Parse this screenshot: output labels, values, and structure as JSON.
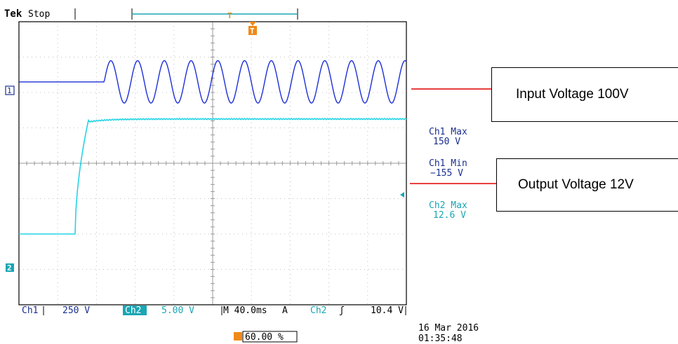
{
  "header": {
    "brand": "Tek",
    "state": "Stop"
  },
  "trigger": {
    "top_marker": "T",
    "level_marker": "T"
  },
  "channels": {
    "ch1_marker": "1",
    "ch2_marker": "2"
  },
  "measurements": [
    {
      "label": "Ch1 Max",
      "value": "150 V"
    },
    {
      "label": "Ch1 Min",
      "value": "−155 V"
    },
    {
      "label": "Ch2 Max",
      "value": "12.6 V"
    }
  ],
  "status_bar": {
    "ch1_label": "Ch1",
    "ch1_scale": "250 V",
    "ch2_label": "Ch2",
    "ch2_scale": "5.00 V",
    "timebase": "M 40.0ms",
    "trigger_mode": "A",
    "trigger_source": "Ch2",
    "trigger_slope": "ʃ",
    "trigger_level": "10.4 V"
  },
  "footer": {
    "position_percent": "60.00 %",
    "date": "16 Mar  2016",
    "time": "01:35:48"
  },
  "annotations": {
    "input": "Input Voltage 100V",
    "output": "Output Voltage 12V"
  },
  "colors": {
    "ch1": "#1c2fd6",
    "ch2": "#26d4e4",
    "trigger": "#f08a16",
    "grid": "#bfbfbf",
    "arrow": "#e00000",
    "label_blue": "#1a2f8f",
    "label_cyan": "#1aa6b4"
  },
  "chart_data": {
    "type": "line",
    "x_unit": "div",
    "y_unit": "div",
    "x_divisions": 10,
    "y_divisions": 8,
    "series": [
      {
        "name": "Ch1",
        "baseline_div": 2.3,
        "onset_div": 2.2,
        "cycles": 11.3,
        "amplitude_div": 0.6
      },
      {
        "name": "Ch2",
        "low_div": -2.0,
        "high_div": 1.25,
        "rise_start_div": 1.45,
        "rise_end_div": 1.8
      }
    ]
  }
}
